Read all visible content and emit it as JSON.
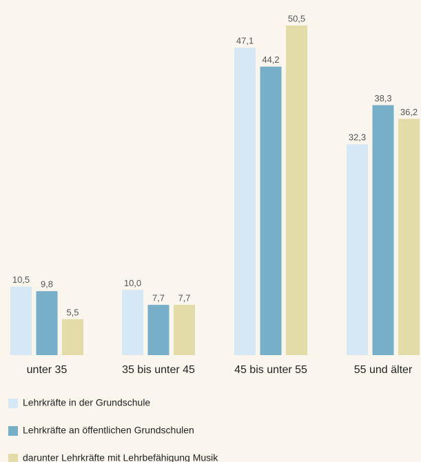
{
  "chart_data": {
    "type": "bar",
    "categories": [
      "unter 35",
      "35 bis unter 45",
      "45 bis unter 55",
      "55 und älter"
    ],
    "series": [
      {
        "name": "Lehrkräfte in der Grundschule",
        "color": "#d6e8f5",
        "values": [
          10.5,
          10.0,
          47.1,
          32.3
        ],
        "value_labels": [
          "10,5",
          "10,0",
          "47,1",
          "32,3"
        ]
      },
      {
        "name": "Lehrkräfte an öffentlichen Grundschulen",
        "color": "#77afc9",
        "values": [
          9.8,
          7.7,
          44.2,
          38.3
        ],
        "value_labels": [
          "9,8",
          "7,7",
          "44,2",
          "38,3"
        ]
      },
      {
        "name": "darunter Lehrkräfte mit Lehrbefähigung Musik",
        "color": "#e3dba8",
        "values": [
          5.5,
          7.7,
          50.5,
          36.2
        ],
        "value_labels": [
          "5,5",
          "7,7",
          "50,5",
          "36,2"
        ]
      }
    ]
  }
}
